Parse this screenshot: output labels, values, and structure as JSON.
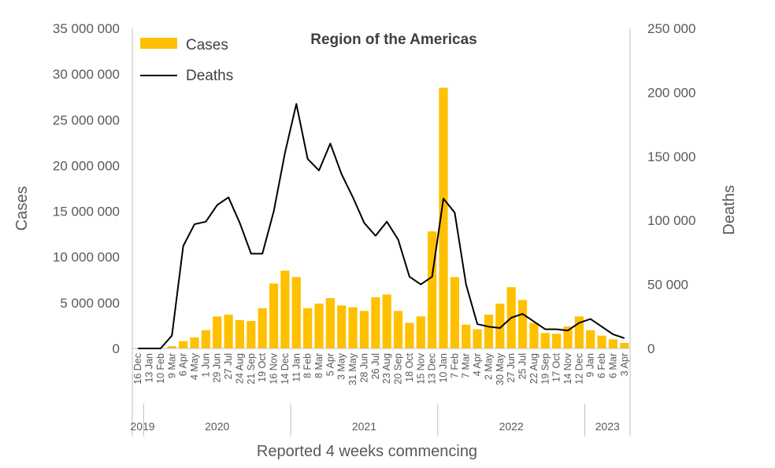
{
  "chart_data": {
    "type": "bar",
    "title": "Region of the Americas",
    "xlabel": "Reported 4 weeks commencing",
    "ylabel": "Cases",
    "y2label": "Deaths",
    "ylim": [
      0,
      35000000
    ],
    "y2lim": [
      0,
      250000
    ],
    "yticks": [
      "35 000 000",
      "30 000 000",
      "25 000 000",
      "20 000 000",
      "15 000 000",
      "10 000 000",
      "5 000 000",
      "0"
    ],
    "y2ticks": [
      "250 000",
      "200 000",
      "150 000",
      "100 000",
      "50 000",
      "0"
    ],
    "legend": {
      "placement": "top-left",
      "entries": [
        "Cases",
        "Deaths"
      ]
    },
    "colors": {
      "cases": "#FFC000",
      "deaths": "#000000",
      "axis": "#BFBFBF"
    },
    "categories": [
      "16 Dec",
      "13 Jan",
      "10 Feb",
      "9 Mar",
      "6 Apr",
      "4 May",
      "1 Jun",
      "29 Jun",
      "27 Jul",
      "24 Aug",
      "21 Sep",
      "19 Oct",
      "16 Nov",
      "14 Dec",
      "11 Jan",
      "8 Feb",
      "8 Mar",
      "5 Apr",
      "3 May",
      "31 May",
      "28 Jun",
      "26 Jul",
      "23 Aug",
      "20 Sep",
      "18 Oct",
      "15 Nov",
      "13 Dec",
      "10 Jan",
      "7 Feb",
      "7 Mar",
      "4 Apr",
      "2 May",
      "30 May",
      "27 Jun",
      "25 Jul",
      "22 Aug",
      "19 Sep",
      "17 Oct",
      "14 Nov",
      "12 Dec",
      "9 Jan",
      "6 Feb",
      "6 Mar",
      "3 Apr"
    ],
    "years": [
      {
        "label": "2019",
        "start": 0,
        "end": 0
      },
      {
        "label": "2020",
        "start": 1,
        "end": 13
      },
      {
        "label": "2021",
        "start": 14,
        "end": 26
      },
      {
        "label": "2022",
        "start": 27,
        "end": 39
      },
      {
        "label": "2023",
        "start": 40,
        "end": 43
      }
    ],
    "series": [
      {
        "name": "Cases",
        "type": "bar",
        "axis": "left",
        "values": [
          0,
          20000,
          50000,
          250000,
          800000,
          1200000,
          2000000,
          3500000,
          3700000,
          3100000,
          3000000,
          4400000,
          7100000,
          8500000,
          7800000,
          4400000,
          4900000,
          5500000,
          4700000,
          4500000,
          4100000,
          5600000,
          5900000,
          4100000,
          2800000,
          3500000,
          12800000,
          28500000,
          7800000,
          2600000,
          2100000,
          3700000,
          4900000,
          6700000,
          5300000,
          2800000,
          1700000,
          1600000,
          2400000,
          3500000,
          2000000,
          1400000,
          1000000,
          600000
        ]
      },
      {
        "name": "Deaths",
        "type": "line",
        "axis": "right",
        "values": [
          0,
          0,
          0,
          10000,
          80000,
          97000,
          99000,
          112000,
          118000,
          98000,
          74000,
          74000,
          107000,
          153000,
          191000,
          148000,
          139000,
          160000,
          136000,
          118000,
          98000,
          88000,
          99000,
          85000,
          56000,
          50000,
          56000,
          117000,
          106000,
          50000,
          19000,
          17000,
          16000,
          24000,
          27000,
          21000,
          15000,
          15000,
          14000,
          20000,
          23000,
          17000,
          11000,
          8000
        ]
      }
    ]
  }
}
